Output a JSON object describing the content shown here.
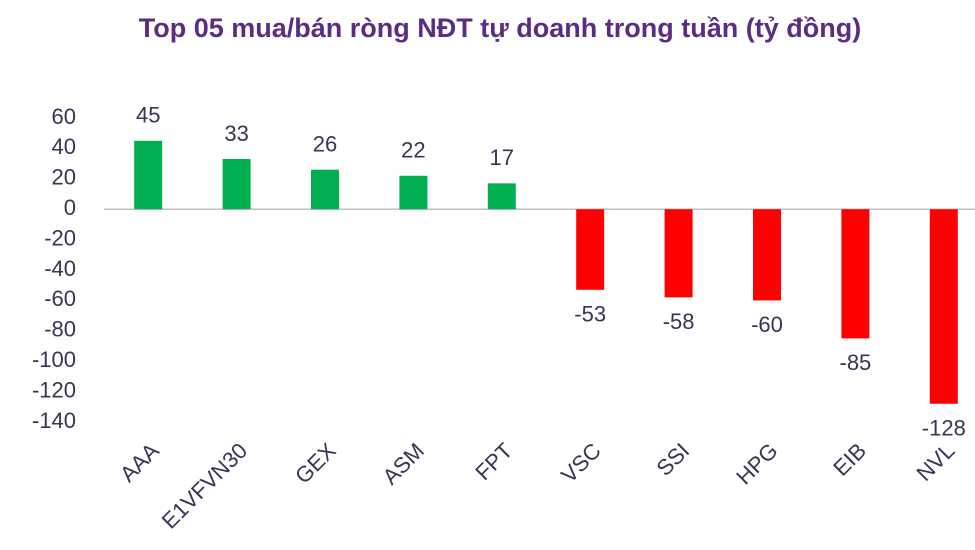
{
  "chart_data": {
    "type": "bar",
    "title": "Top 05 mua/bán ròng NĐT tự doanh trong tuần (tỷ đồng)",
    "categories": [
      "AAA",
      "E1VFVN30",
      "GEX",
      "ASM",
      "FPT",
      "VSC",
      "SSI",
      "HPG",
      "EIB",
      "NVL"
    ],
    "values": [
      45,
      33,
      26,
      22,
      17,
      -53,
      -58,
      -60,
      -85,
      -128
    ],
    "colors": [
      "#00b050",
      "#00b050",
      "#00b050",
      "#00b050",
      "#00b050",
      "#ff0000",
      "#ff0000",
      "#ff0000",
      "#ff0000",
      "#ff0000"
    ],
    "ylim": [
      -140,
      60
    ],
    "yticks": [
      60,
      40,
      20,
      0,
      -20,
      -40,
      -60,
      -80,
      -100,
      -120,
      -140
    ],
    "grid": false
  }
}
